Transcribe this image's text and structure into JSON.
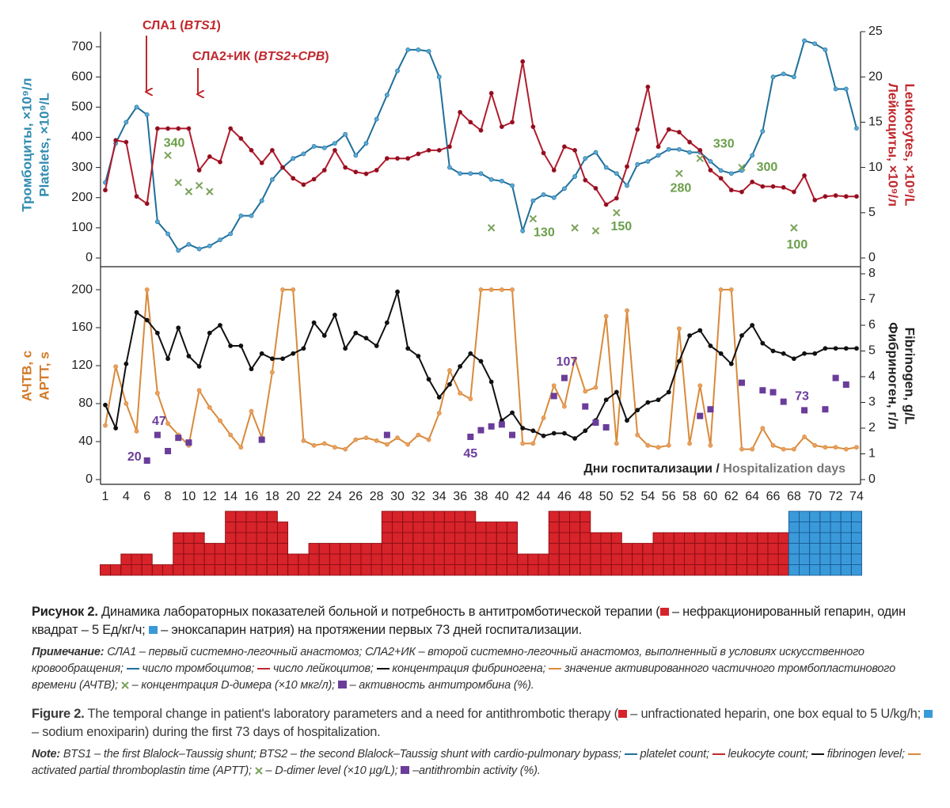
{
  "chart_data": [
    {
      "type": "line",
      "ylim": [
        0,
        750
      ],
      "yticks": [
        0,
        100,
        200,
        300,
        400,
        500,
        600,
        700
      ],
      "y2lim": [
        0,
        25
      ],
      "y2ticks": [
        0,
        5,
        10,
        15,
        20,
        25
      ],
      "ylabel": [
        "Тромбоциты, ×10⁹/л",
        "Platelets, ×10⁹/L"
      ],
      "y2label": [
        "Лейкоциты, ×10⁹/л",
        "Leukocytes, ×10⁹/L"
      ],
      "annotations": [
        [
          "СЛА1 (",
          "BTS1",
          ")"
        ],
        [
          "СЛА2+ИК (",
          "BTS2+CPB",
          ")"
        ]
      ],
      "series": [
        {
          "type": "line",
          "color": "#1f6f9a",
          "point_color": "#5aa9d6",
          "values": [
            250,
            380,
            450,
            500,
            475,
            120,
            80,
            25,
            45,
            30,
            40,
            60,
            80,
            140,
            140,
            190,
            260,
            300,
            330,
            345,
            370,
            365,
            380,
            410,
            340,
            380,
            460,
            540,
            620,
            690,
            690,
            685,
            600,
            300,
            280,
            280,
            280,
            260,
            255,
            240,
            90,
            190,
            210,
            200,
            230,
            270,
            330,
            350,
            300,
            280,
            240,
            310,
            320,
            340,
            360,
            360,
            350,
            350,
            320,
            290,
            280,
            290,
            340,
            420,
            600,
            610,
            600,
            720,
            710,
            690,
            560,
            560,
            430
          ]
        },
        {
          "type": "line",
          "axis": "y2",
          "color": "#b01c2e",
          "point_color": "#8c1020",
          "values": [
            7.5,
            13,
            12.8,
            6.8,
            6,
            14.3,
            14.3,
            14.3,
            14.3,
            9.7,
            11.2,
            10.6,
            14.3,
            13.2,
            11.9,
            10.5,
            11.9,
            10,
            8.8,
            8.1,
            8.7,
            9.7,
            11.9,
            10,
            9.5,
            9.3,
            9.7,
            11,
            11,
            11,
            11.5,
            11.9,
            11.9,
            12.3,
            16.1,
            15,
            14.1,
            18.2,
            14.5,
            15,
            21.7,
            14.5,
            11.6,
            9.7,
            12.3,
            11.9,
            8.6,
            7.7,
            5.9,
            6.6,
            10.1,
            14.2,
            18.9,
            12.3,
            14.2,
            13.9,
            12.8,
            11.9,
            9.7,
            8.8,
            7.5,
            7.3,
            8.4,
            7.9,
            7.9,
            7.8,
            7.3,
            9.1,
            6.4,
            6.8,
            6.9,
            6.8,
            6.8
          ]
        },
        {
          "type": "scatter",
          "marker": "x",
          "color": "#7aa35a",
          "values": [
            null,
            null,
            null,
            null,
            null,
            null,
            340,
            250,
            220,
            240,
            220,
            null,
            null,
            null,
            null,
            null,
            null,
            null,
            null,
            null,
            null,
            null,
            null,
            null,
            null,
            null,
            null,
            null,
            null,
            null,
            null,
            null,
            null,
            null,
            null,
            null,
            null,
            100,
            null,
            null,
            null,
            130,
            null,
            null,
            null,
            100,
            null,
            90,
            null,
            150,
            null,
            null,
            null,
            null,
            null,
            280,
            null,
            330,
            null,
            null,
            null,
            300,
            null,
            null,
            null,
            null,
            100,
            null,
            null,
            null,
            null,
            null,
            null
          ],
          "value_labels": [
            null,
            null,
            null,
            null,
            null,
            null,
            "340",
            null,
            null,
            null,
            null,
            null,
            null,
            null,
            null,
            null,
            null,
            null,
            null,
            null,
            null,
            null,
            null,
            null,
            null,
            null,
            null,
            null,
            null,
            null,
            null,
            null,
            null,
            null,
            null,
            null,
            null,
            null,
            null,
            null,
            null,
            "130",
            null,
            null,
            null,
            null,
            null,
            null,
            null,
            "150",
            null,
            null,
            null,
            null,
            null,
            "280",
            null,
            "330",
            null,
            null,
            null,
            "300",
            null,
            null,
            null,
            null,
            "100",
            null,
            null,
            null,
            null,
            null,
            null
          ]
        }
      ]
    },
    {
      "type": "line",
      "categories": [
        "1",
        null,
        "4",
        null,
        "6",
        null,
        "8",
        null,
        "10",
        null,
        "12",
        null,
        "14",
        null,
        "16",
        null,
        "18",
        null,
        "20",
        null,
        "22",
        null,
        "24",
        null,
        "26",
        null,
        "28",
        null,
        "30",
        null,
        "32",
        null,
        "34",
        null,
        "36",
        null,
        "38",
        null,
        "40",
        null,
        "42",
        null,
        "44",
        null,
        "46",
        null,
        "48",
        null,
        "50",
        null,
        "52",
        null,
        "54",
        null,
        "56",
        null,
        "58",
        null,
        "60",
        null,
        "62",
        null,
        "64",
        null,
        "66",
        null,
        "68",
        null,
        "70",
        null,
        "72",
        null,
        "74"
      ],
      "ylim": [
        0,
        216.7
      ],
      "yticks": [
        0,
        40,
        80,
        120,
        160,
        200
      ],
      "y2lim": [
        0,
        8
      ],
      "y2ticks": [
        0,
        1,
        2,
        3,
        4,
        5,
        6,
        7,
        8
      ],
      "ylabel": [
        "АЧТВ, с",
        "APTT, s"
      ],
      "y2label": [
        "Фибриноген, г/л",
        "Fibrinogen, g/L"
      ],
      "xlabel": [
        "Дни госпитализации",
        " / ",
        "Hospitalization days"
      ],
      "series": [
        {
          "type": "line",
          "color": "#d98a3a",
          "point_color": "#e8a060",
          "values": [
            57,
            119,
            80,
            51,
            200,
            91,
            59,
            47,
            36,
            94,
            76,
            62,
            47,
            34,
            72,
            44,
            113,
            200,
            200,
            41,
            36,
            38,
            34,
            32,
            42,
            44,
            41,
            37,
            44,
            37,
            47,
            42,
            70,
            115,
            91,
            85,
            200,
            200,
            200,
            200,
            38,
            38,
            65,
            99,
            77,
            127,
            93,
            97,
            172,
            38,
            178,
            47,
            36,
            34,
            36,
            159,
            38,
            99,
            36,
            200,
            200,
            32,
            32,
            54,
            36,
            32,
            32,
            45,
            36,
            34,
            34,
            32,
            34
          ]
        },
        {
          "type": "line",
          "axis": "y2",
          "color": "#111111",
          "point_color": "#111111",
          "values": [
            2.9,
            2.0,
            4.5,
            6.5,
            6.2,
            5.7,
            4.7,
            5.9,
            4.8,
            4.4,
            5.7,
            6.0,
            5.2,
            5.2,
            4.3,
            4.9,
            4.7,
            4.7,
            4.9,
            5.1,
            6.1,
            5.6,
            6.4,
            5.1,
            5.7,
            5.5,
            5.2,
            6.1,
            7.3,
            5.1,
            4.8,
            3.9,
            3.2,
            3.7,
            4.4,
            4.9,
            4.6,
            3.8,
            2.3,
            2.6,
            2.0,
            1.9,
            1.7,
            1.8,
            1.8,
            1.6,
            1.9,
            2.3,
            3.1,
            3.4,
            2.3,
            2.7,
            3.0,
            3.1,
            3.4,
            4.6,
            5.6,
            5.8,
            5.2,
            4.9,
            4.5,
            5.6,
            6.0,
            5.3,
            5.0,
            4.9,
            4.7,
            4.9,
            4.9,
            5.1,
            5.1,
            5.1,
            5.1
          ]
        },
        {
          "type": "scatter",
          "marker": "square",
          "color": "#6a3d9a",
          "values": [
            null,
            null,
            null,
            null,
            20,
            47,
            30,
            44,
            39,
            null,
            null,
            null,
            null,
            null,
            null,
            42,
            null,
            null,
            null,
            null,
            null,
            null,
            null,
            null,
            null,
            null,
            null,
            47,
            null,
            null,
            null,
            null,
            null,
            null,
            null,
            45,
            52,
            56,
            58,
            47,
            null,
            null,
            null,
            88,
            107,
            null,
            77,
            60,
            55,
            null,
            null,
            null,
            null,
            null,
            null,
            null,
            null,
            67,
            74,
            null,
            null,
            102,
            null,
            94,
            92,
            82,
            null,
            73,
            null,
            74,
            107,
            100,
            null
          ],
          "value_labels": [
            null,
            null,
            null,
            null,
            "20",
            "47",
            null,
            null,
            null,
            null,
            null,
            null,
            null,
            null,
            null,
            null,
            null,
            null,
            null,
            null,
            null,
            null,
            null,
            null,
            null,
            null,
            null,
            null,
            null,
            null,
            null,
            null,
            null,
            null,
            null,
            "45",
            null,
            null,
            null,
            null,
            null,
            null,
            null,
            null,
            "107",
            null,
            null,
            null,
            null,
            null,
            null,
            null,
            null,
            null,
            null,
            null,
            null,
            null,
            null,
            null,
            null,
            null,
            null,
            null,
            null,
            null,
            null,
            "73",
            null,
            null,
            null,
            null,
            null
          ]
        }
      ]
    },
    {
      "type": "bar",
      "series": [
        {
          "color": "#d7232a",
          "line_color": "#8d0f14",
          "values": [
            1,
            1,
            2,
            2,
            2,
            1,
            1,
            4,
            4,
            4,
            3,
            3,
            6,
            6,
            6,
            6,
            6,
            5,
            2,
            2,
            3,
            3,
            3,
            3,
            3,
            3,
            3,
            6,
            6,
            6,
            6,
            6,
            6,
            6,
            6,
            6,
            5,
            5,
            5,
            5,
            2,
            2,
            2,
            6,
            6,
            6,
            6,
            4,
            4,
            4,
            3,
            3,
            3,
            4,
            4,
            4,
            4,
            4,
            4,
            4,
            4,
            4,
            4,
            4,
            4,
            4,
            null,
            null,
            null,
            null,
            null,
            null,
            null
          ]
        },
        {
          "color": "#3a9ad9",
          "line_color": "#1a5d9a",
          "values": [
            null,
            null,
            null,
            null,
            null,
            null,
            null,
            null,
            null,
            null,
            null,
            null,
            null,
            null,
            null,
            null,
            null,
            null,
            null,
            null,
            null,
            null,
            null,
            null,
            null,
            null,
            null,
            null,
            null,
            null,
            null,
            null,
            null,
            null,
            null,
            null,
            null,
            null,
            null,
            null,
            null,
            null,
            null,
            null,
            null,
            null,
            null,
            null,
            null,
            null,
            null,
            null,
            null,
            null,
            null,
            null,
            null,
            null,
            null,
            null,
            null,
            null,
            null,
            null,
            null,
            null,
            6,
            6,
            6,
            6,
            6,
            6,
            6
          ]
        }
      ]
    }
  ],
  "caption": {
    "ru": {
      "label": "Рисунок 2.",
      "parts": [
        " Динамика лабораторных показателей больной и потребность в антитромботической терапии (",
        " – нефракционированный гепарин, один квадрат – 5 Ед/кг/ч; ",
        " – эноксапарин натрия) на протяжении первых 73 дней госпитализации."
      ]
    },
    "ru_note": {
      "label": "Примечание:",
      "parts": [
        " СЛА1 – первый системно-легочный анастомоз; СЛА2+ИК – второй системно-легочный анастомоз, выполненный в условиях искусственного кровообращения; ",
        " число тромбоцитов; ",
        " число лейкоцитов; ",
        " концентрация фибриногена; ",
        " значение активированного частичного тромбопластинового времени (АЧТВ); ",
        " – концентрация D-димера (×10 мкг/л); ",
        " – активность антитромбина (%)."
      ]
    },
    "en": {
      "label": "Figure 2.",
      "parts": [
        " The temporal change in patient's laboratory parameters and a need for antithrombotic therapy (",
        " – unfractionated heparin, one box equal to 5 U/kg/h; ",
        " – sodium enoxiparin) during the first 73 days of hospitalization."
      ]
    },
    "en_note": {
      "label": "Note:",
      "parts": [
        " BTS1 – the first Blalock–Taussig shunt; BTS2 – the second Blalock–Taussig shunt with cardio-pulmonary bypass; ",
        " platelet count; ",
        " leukocyte count; ",
        " fibrinogen level; ",
        " activated partial thromboplastin time (APTT); ",
        " – D-dimer level (×10 µg/L); ",
        " –antithrombin activity (%)."
      ]
    }
  }
}
